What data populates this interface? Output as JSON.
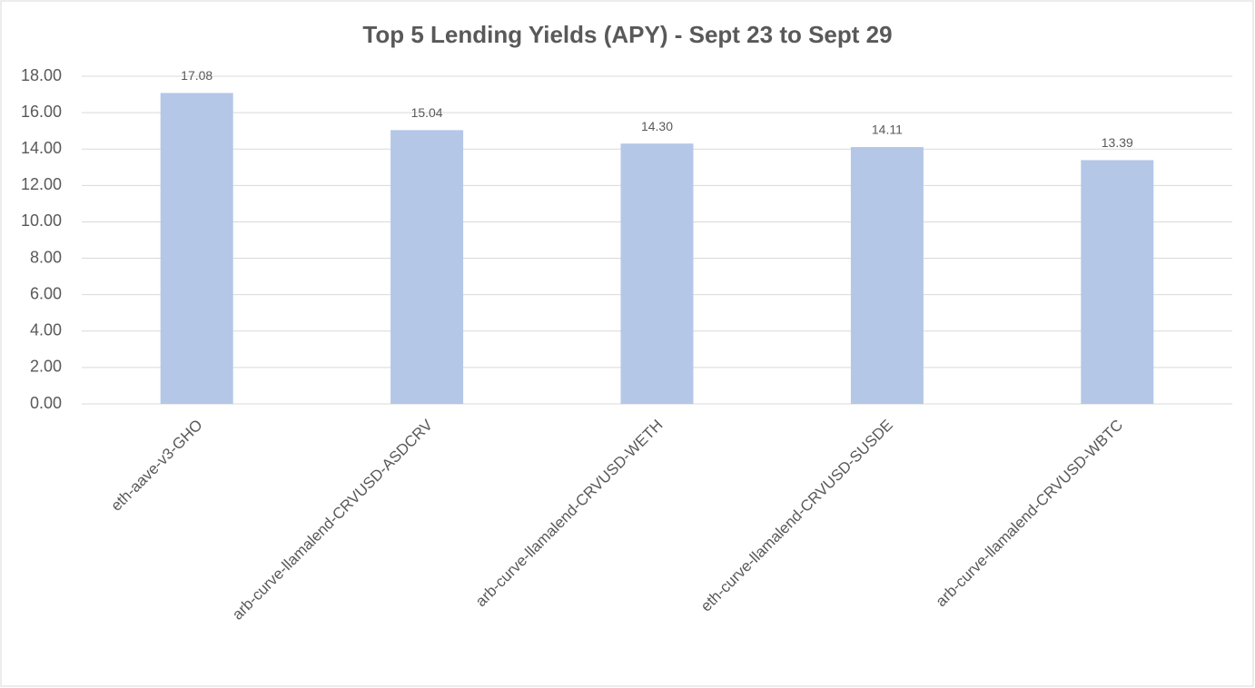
{
  "chart_data": {
    "type": "bar",
    "title": "Top 5 Lending Yields (APY) - Sept 23 to Sept 29",
    "categories": [
      "eth-aave-v3-GHO",
      "arb-curve-llamalend-CRVUSD-ASDCRV",
      "arb-curve-llamalend-CRVUSD-WETH",
      "eth-curve-llamalend-CRVUSD-SUSDE",
      "arb-curve-llamalend-CRVUSD-WBTC"
    ],
    "values": [
      17.08,
      15.04,
      14.3,
      14.11,
      13.39
    ],
    "value_labels": [
      "17.08",
      "15.04",
      "14.30",
      "14.11",
      "13.39"
    ],
    "color": "#b4c7e7",
    "ylim": [
      0,
      18
    ],
    "yticks": [
      {
        "value": 0,
        "label": "0.00"
      },
      {
        "value": 2,
        "label": "2.00"
      },
      {
        "value": 4,
        "label": "4.00"
      },
      {
        "value": 6,
        "label": "6.00"
      },
      {
        "value": 8,
        "label": "8.00"
      },
      {
        "value": 10,
        "label": "10.00"
      },
      {
        "value": 12,
        "label": "12.00"
      },
      {
        "value": 14,
        "label": "14.00"
      },
      {
        "value": 16,
        "label": "16.00"
      },
      {
        "value": 18,
        "label": "18.00"
      }
    ],
    "grid": true
  }
}
